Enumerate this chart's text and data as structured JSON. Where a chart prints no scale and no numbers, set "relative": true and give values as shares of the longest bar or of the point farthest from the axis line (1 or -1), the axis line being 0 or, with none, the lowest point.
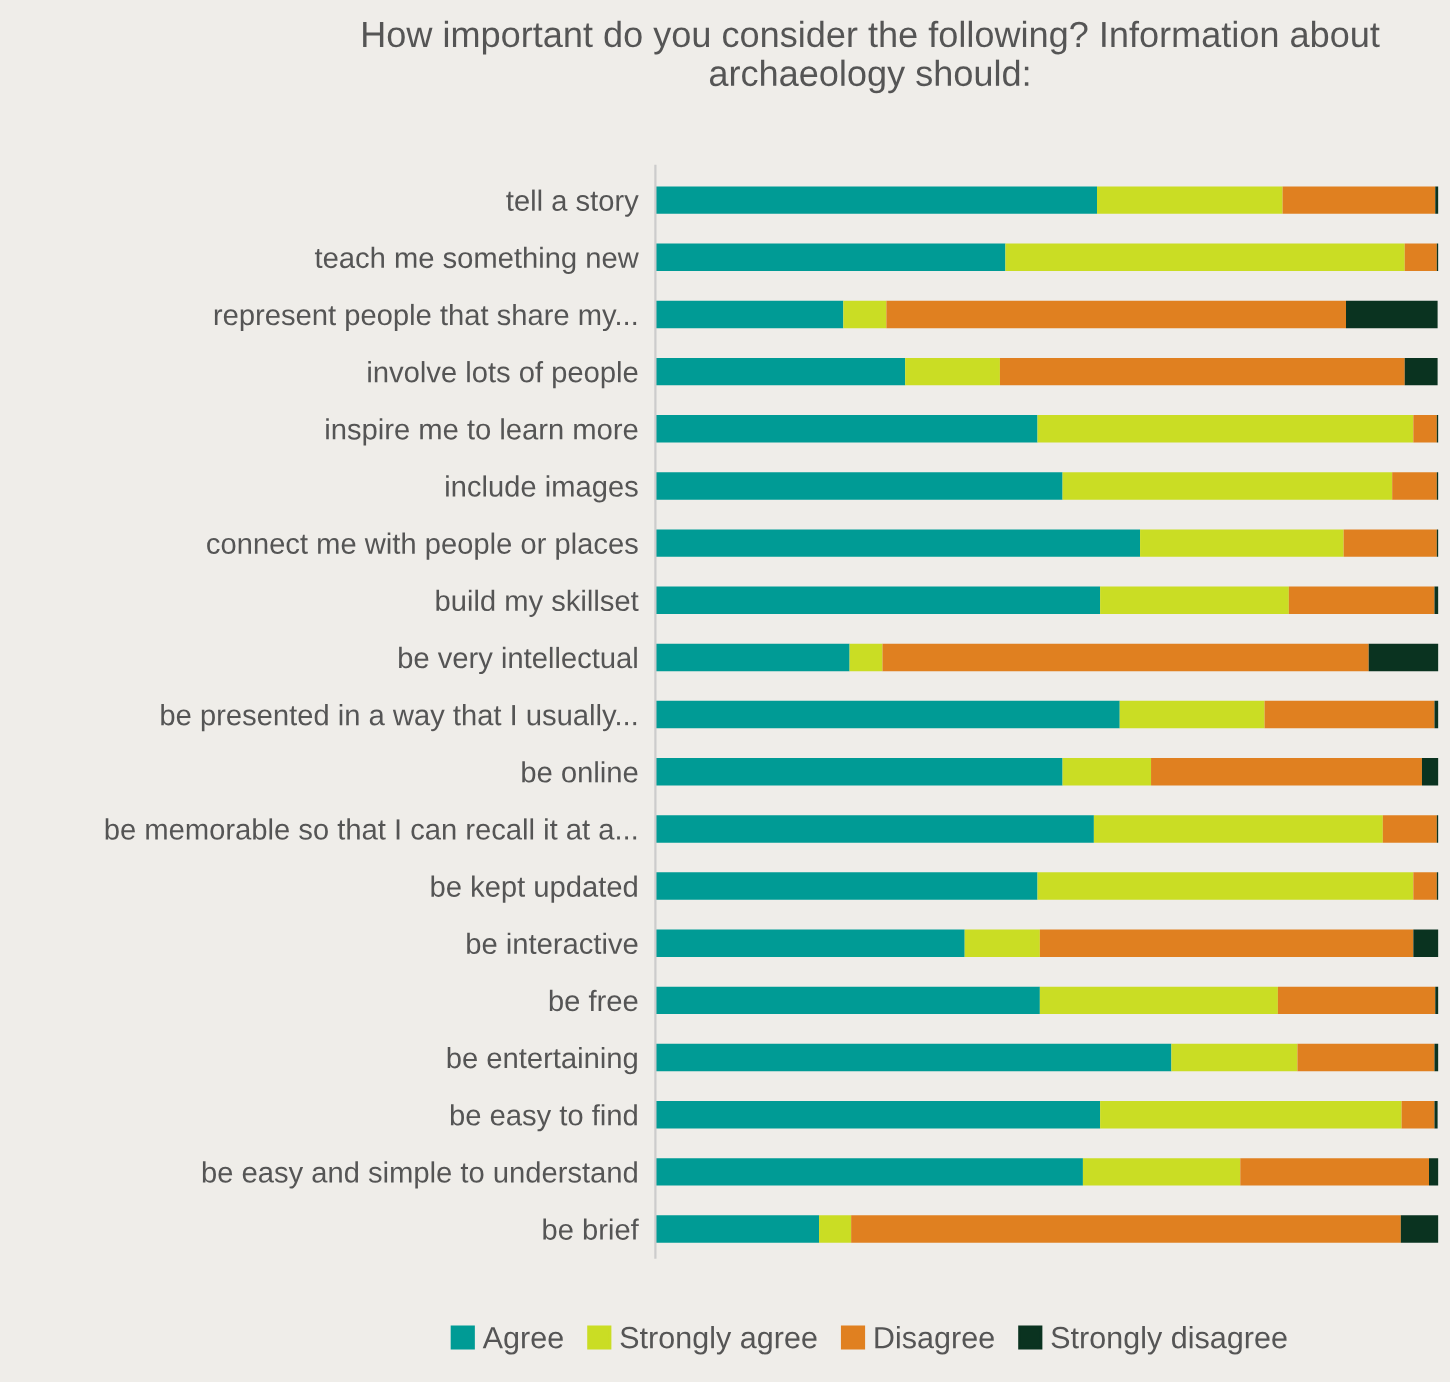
{
  "chart_data": {
    "type": "bar",
    "orientation": "horizontal",
    "stacked": true,
    "relative": true,
    "legend": "bottom",
    "grid": false,
    "title": "How important do you consider the following? Information about archaeology should:",
    "categories": [
      "tell a story",
      "teach me something new",
      "represent people that share my...",
      "involve lots of people",
      "inspire me to learn more",
      "include images",
      "connect me with people or places",
      "build my skillset",
      "be very intellectual",
      "be presented in a way that I usually...",
      "be online",
      "be memorable so that I can recall it at a...",
      "be kept updated",
      "be interactive",
      "be free",
      "be entertaining",
      "be easy to find",
      "be easy and simple to understand",
      "be brief"
    ],
    "series": [
      {
        "name": "Agree",
        "color": "#009b95",
        "values": [
          0.564,
          0.447,
          0.24,
          0.319,
          0.488,
          0.52,
          0.619,
          0.568,
          0.248,
          0.593,
          0.52,
          0.56,
          0.488,
          0.395,
          0.491,
          0.659,
          0.568,
          0.546,
          0.209
        ]
      },
      {
        "name": "Strongly agree",
        "color": "#cadd24",
        "values": [
          0.237,
          0.51,
          0.055,
          0.121,
          0.48,
          0.421,
          0.26,
          0.241,
          0.042,
          0.185,
          0.113,
          0.369,
          0.48,
          0.096,
          0.304,
          0.161,
          0.385,
          0.201,
          0.041
        ]
      },
      {
        "name": "Disagree",
        "color": "#e08020",
        "values": [
          0.195,
          0.041,
          0.587,
          0.517,
          0.03,
          0.057,
          0.119,
          0.186,
          0.621,
          0.217,
          0.346,
          0.069,
          0.03,
          0.477,
          0.201,
          0.175,
          0.042,
          0.241,
          0.702
        ]
      },
      {
        "name": "Strongly disagree",
        "color": "#0a3320",
        "values": [
          0.004,
          0.002,
          0.117,
          0.042,
          0.002,
          0.002,
          0.002,
          0.005,
          0.089,
          0.005,
          0.021,
          0.002,
          0.002,
          0.032,
          0.004,
          0.005,
          0.004,
          0.012,
          0.048
        ]
      }
    ]
  }
}
